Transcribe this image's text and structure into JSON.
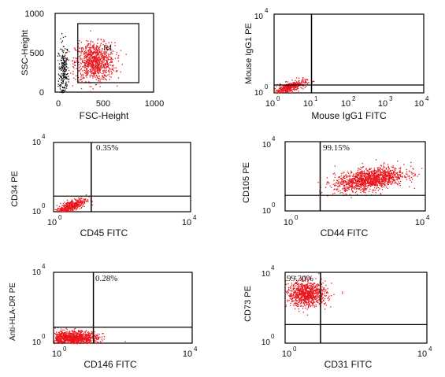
{
  "chart_data": [
    {
      "type": "scatter",
      "xlabel": "FSC-Height",
      "ylabel": "SSC-Height",
      "x_ticks": [
        "0",
        "500",
        "1000"
      ],
      "y_ticks": [
        "0",
        "500",
        "1000"
      ],
      "xlim": [
        0,
        1000
      ],
      "ylim": [
        0,
        1000
      ],
      "scale": "linear",
      "gate": {
        "label": "R1",
        "x": [
          230,
          850
        ],
        "y": [
          120,
          870
        ]
      },
      "clusters": [
        {
          "name": "debris",
          "color": "#000000",
          "center": [
            80,
            250
          ],
          "spread": [
            25,
            200
          ],
          "count": 220
        },
        {
          "name": "cells",
          "color": "#e8141b",
          "center": [
            400,
            390
          ],
          "spread": [
            100,
            120
          ],
          "count": 900
        }
      ],
      "quadrant": null,
      "quadrant_label": ""
    },
    {
      "type": "scatter",
      "xlabel": "Mouse IgG1 FITC",
      "ylabel": "Mouse IgG1 PE",
      "x_ticks": [
        "10",
        "10",
        "10",
        "10",
        "10"
      ],
      "x_tick_exp": [
        "0",
        "1",
        "2",
        "3",
        "4"
      ],
      "y_ticks": [
        "10",
        "10"
      ],
      "y_tick_exp": [
        "0",
        "4"
      ],
      "xlim": [
        0,
        4
      ],
      "ylim": [
        0,
        4
      ],
      "scale": "log",
      "quadrant": [
        1.0,
        0.4
      ],
      "quadrant_label": "",
      "clusters": [
        {
          "name": "cells",
          "color": "#e8141b",
          "center": [
            0.4,
            0.3
          ],
          "spread": [
            0.22,
            0.13
          ],
          "count": 400,
          "tilt": 0.55
        }
      ]
    },
    {
      "type": "scatter",
      "xlabel": "CD45 FITC",
      "ylabel": "CD34 PE",
      "x_ticks": [
        "10",
        "10"
      ],
      "x_tick_exp": [
        "0",
        "4"
      ],
      "y_ticks": [
        "10",
        "10"
      ],
      "y_tick_exp": [
        "0",
        "4"
      ],
      "xlim": [
        0,
        4
      ],
      "ylim": [
        0,
        4
      ],
      "scale": "log",
      "quadrant": [
        1.1,
        0.9
      ],
      "quadrant_label": "0.35%",
      "clusters": [
        {
          "name": "cells",
          "color": "#e8141b",
          "center": [
            0.5,
            0.35
          ],
          "spread": [
            0.22,
            0.17
          ],
          "count": 450,
          "tilt": 0.7
        }
      ]
    },
    {
      "type": "scatter",
      "xlabel": "CD44 FITC",
      "ylabel": "CD105 PE",
      "x_ticks": [
        "10",
        "10"
      ],
      "x_tick_exp": [
        "0",
        "4"
      ],
      "y_ticks": [
        "10",
        "10"
      ],
      "y_tick_exp": [
        "0",
        "4"
      ],
      "xlim": [
        0,
        4
      ],
      "ylim": [
        0,
        4
      ],
      "scale": "log",
      "quadrant": [
        1.0,
        0.9
      ],
      "quadrant_label": "99.15%",
      "clusters": [
        {
          "name": "cells",
          "color": "#e8141b",
          "center": [
            2.4,
            1.85
          ],
          "spread": [
            0.5,
            0.3
          ],
          "count": 1300,
          "tilt": 0.3
        }
      ]
    },
    {
      "type": "scatter",
      "xlabel": "CD146 FITC",
      "ylabel": "Anti-HLA-DR PE",
      "x_ticks": [
        "10",
        "10"
      ],
      "x_tick_exp": [
        "0",
        "4"
      ],
      "y_ticks": [
        "10",
        "10"
      ],
      "y_tick_exp": [
        "0",
        "4"
      ],
      "xlim": [
        0,
        4
      ],
      "ylim": [
        0,
        4
      ],
      "scale": "log",
      "quadrant": [
        1.15,
        0.9
      ],
      "quadrant_label": "0.28%",
      "clusters": [
        {
          "name": "cells",
          "color": "#e8141b",
          "center": [
            0.55,
            0.3
          ],
          "spread": [
            0.35,
            0.2
          ],
          "count": 1100,
          "tilt": 0.0
        }
      ]
    },
    {
      "type": "scatter",
      "xlabel": "CD31 FITC",
      "ylabel": "CD73 PE",
      "x_ticks": [
        "10",
        "10"
      ],
      "x_tick_exp": [
        "0",
        "4"
      ],
      "y_ticks": [
        "10",
        "10"
      ],
      "y_tick_exp": [
        "0",
        "4"
      ],
      "xlim": [
        0,
        4
      ],
      "ylim": [
        0,
        4
      ],
      "scale": "log",
      "quadrant": [
        1.0,
        1.05
      ],
      "quadrant_label": "99.30%",
      "clusters": [
        {
          "name": "cells",
          "color": "#e8141b",
          "center": [
            0.6,
            2.8
          ],
          "spread": [
            0.28,
            0.35
          ],
          "count": 900,
          "tilt": 0.0
        }
      ]
    }
  ]
}
